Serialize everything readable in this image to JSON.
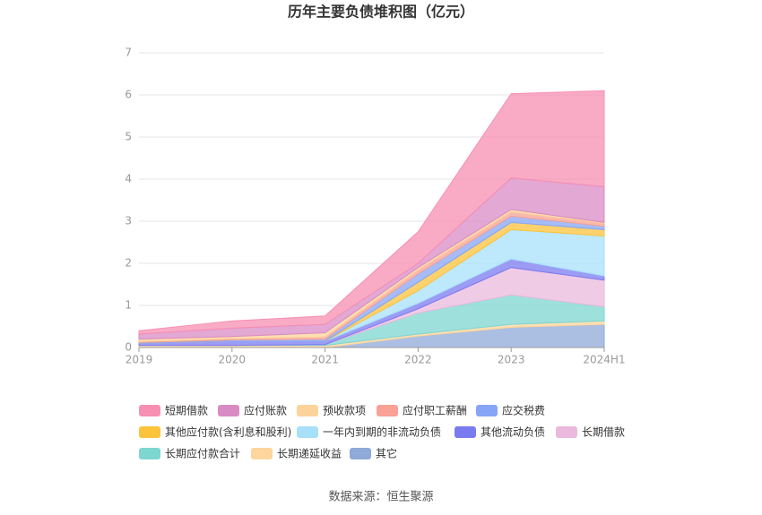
{
  "chart_data": {
    "type": "stacked_area",
    "title": "历年主要负债堆积图（亿元）",
    "categories": [
      "2019",
      "2020",
      "2021",
      "2022",
      "2023",
      "2024H1"
    ],
    "ylim": [
      0,
      7
    ],
    "yticks": [
      0,
      1,
      2,
      3,
      4,
      5,
      6,
      7
    ],
    "grid": true,
    "series": [
      {
        "name": "其它",
        "color": "#8fa9d9",
        "values": [
          0,
          0,
          0,
          0.27,
          0.48,
          0.55
        ]
      },
      {
        "name": "长期递延收益",
        "color": "#fed59c",
        "values": [
          0.05,
          0.05,
          0.05,
          0.05,
          0.07,
          0.08
        ]
      },
      {
        "name": "长期应付款合计",
        "color": "#7dd6d0",
        "values": [
          0,
          0,
          0.02,
          0.5,
          0.7,
          0.34
        ]
      },
      {
        "name": "长期借款",
        "color": "#ebb9dd",
        "values": [
          0,
          0,
          0,
          0.1,
          0.65,
          0.63
        ]
      },
      {
        "name": "其他流动负债",
        "color": "#7b7bf0",
        "values": [
          0.05,
          0.1,
          0.08,
          0.13,
          0.2,
          0.1
        ]
      },
      {
        "name": "一年内到期的非流动负债",
        "color": "#a8e0f9",
        "values": [
          0,
          0,
          0,
          0.3,
          0.7,
          0.95
        ]
      },
      {
        "name": "其他应付款(含利息和股利)",
        "color": "#fcc33c",
        "values": [
          0,
          0,
          0,
          0.2,
          0.17,
          0.15
        ]
      },
      {
        "name": "应交税费",
        "color": "#87a5f5",
        "values": [
          0.02,
          0.03,
          0.05,
          0.2,
          0.15,
          0.08
        ]
      },
      {
        "name": "应付职工薪酬",
        "color": "#f8a194",
        "values": [
          0.02,
          0.03,
          0.05,
          0.1,
          0.1,
          0.07
        ]
      },
      {
        "name": "预收款项",
        "color": "#fdd39a",
        "values": [
          0.06,
          0.05,
          0.1,
          0.05,
          0.06,
          0.02
        ]
      },
      {
        "name": "应付账款",
        "color": "#d98bc4",
        "values": [
          0.12,
          0.2,
          0.2,
          0.1,
          0.75,
          0.85
        ]
      },
      {
        "name": "短期借款",
        "color": "#f78fb3",
        "values": [
          0.08,
          0.17,
          0.2,
          0.75,
          2.0,
          2.28
        ]
      }
    ],
    "legend_order": [
      11,
      10,
      9,
      8,
      7,
      6,
      5,
      4,
      3,
      2,
      1,
      0
    ],
    "source": "数据来源：恒生聚源"
  }
}
